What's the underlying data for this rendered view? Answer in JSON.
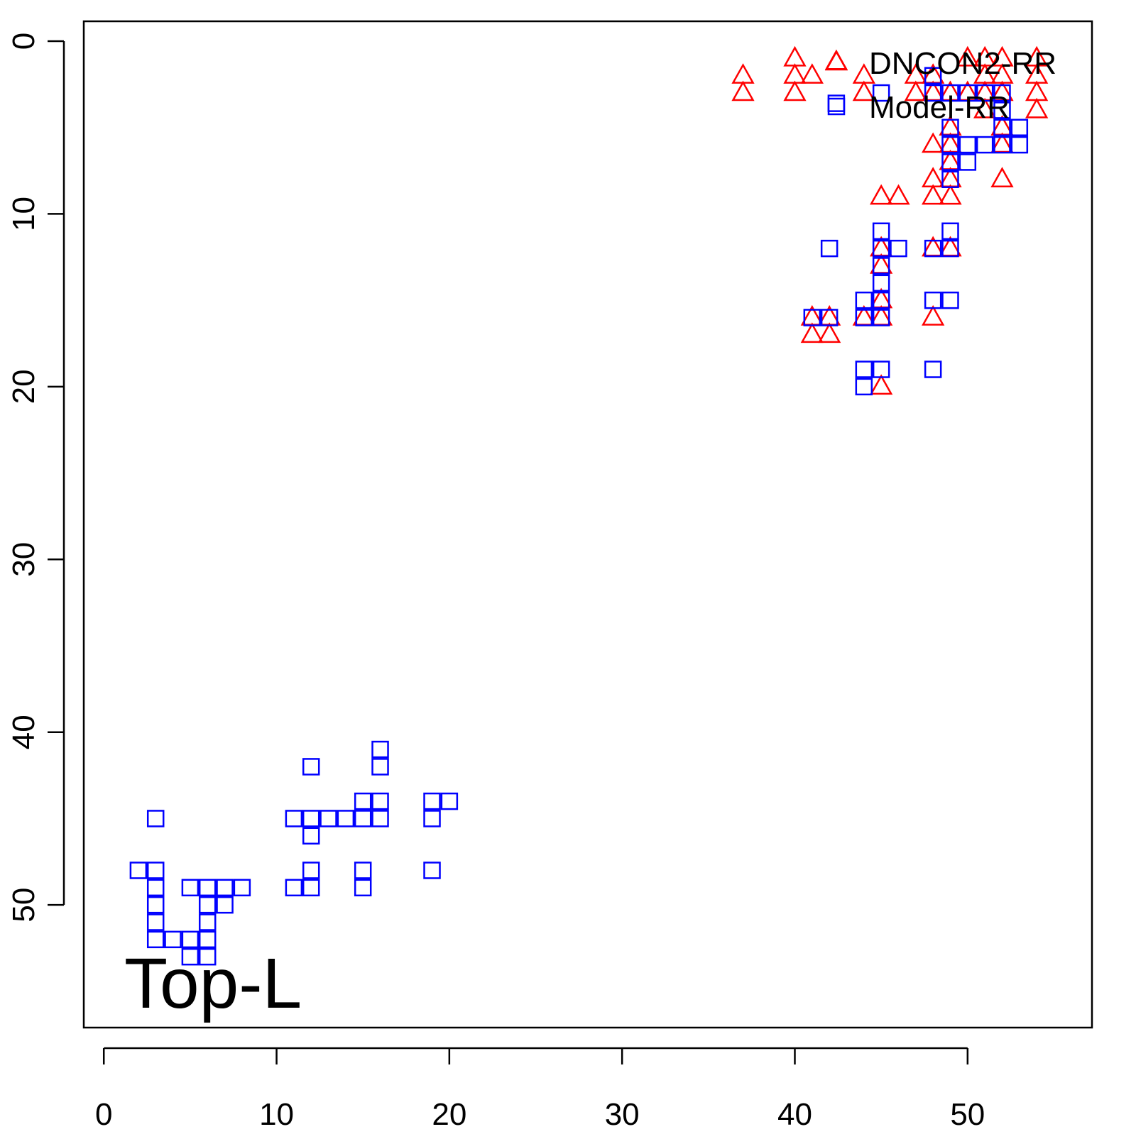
{
  "chart_data": {
    "type": "scatter",
    "annotation": "Top-L",
    "xlim": [
      -1.16,
      57.2
    ],
    "ylim": [
      57.1,
      -1.15
    ],
    "xticks": [
      0,
      10,
      20,
      30,
      40,
      50
    ],
    "yticks": [
      0,
      10,
      20,
      30,
      40,
      50
    ],
    "legend_position": "top-right",
    "series": [
      {
        "name": "DNCON2-RR",
        "color": "#ff0000",
        "marker": "triangle",
        "x": [
          37,
          37,
          40,
          40,
          40,
          41,
          42.4,
          44,
          44,
          47,
          47,
          48,
          48,
          49,
          50,
          50,
          51,
          51,
          51,
          52,
          52,
          52,
          54,
          54,
          54,
          54,
          51,
          52,
          52,
          52,
          48,
          48,
          48,
          49,
          49,
          49,
          49,
          49,
          45,
          46,
          48,
          49,
          45,
          45,
          45,
          45,
          44,
          41,
          42,
          41,
          42,
          48,
          45
        ],
        "values": [
          2,
          3,
          1,
          2,
          3,
          2,
          1.2,
          2,
          3,
          2,
          3,
          2,
          3,
          3,
          1,
          3,
          1,
          2,
          3,
          1,
          2,
          3,
          1,
          2,
          3,
          4,
          4,
          5,
          6,
          8,
          6,
          8,
          9,
          5,
          6,
          7,
          8,
          9,
          9,
          9,
          12,
          12,
          12,
          13,
          15,
          16,
          16,
          16,
          16,
          17,
          17,
          16,
          20
        ]
      },
      {
        "name": "Model-RR",
        "color": "#0000ff",
        "marker": "square",
        "x": [
          3,
          2,
          3,
          3,
          3,
          3,
          3,
          4,
          5,
          5,
          6,
          6,
          6,
          6,
          6,
          5,
          7,
          7,
          8,
          12,
          11,
          12,
          12,
          13,
          14,
          15,
          15,
          16,
          16,
          16,
          16,
          11,
          12,
          12,
          15,
          15,
          19,
          20,
          19,
          19,
          42.4,
          42,
          41,
          42,
          44,
          44,
          45,
          45,
          45,
          45,
          45,
          45,
          46,
          44,
          44,
          45,
          48,
          48,
          49,
          48,
          49,
          49,
          45,
          48,
          48,
          49,
          50,
          51,
          52,
          52,
          52,
          53,
          53,
          52,
          51,
          50,
          50,
          49,
          49,
          49,
          49
        ],
        "values": [
          45,
          48,
          48,
          49,
          50,
          51,
          52,
          52,
          52,
          53,
          53,
          52,
          51,
          50,
          49,
          49,
          49,
          50,
          49,
          42,
          45,
          45,
          46,
          45,
          45,
          45,
          44,
          44,
          45,
          41,
          42,
          49,
          49,
          48,
          48,
          49,
          44,
          44,
          45,
          48,
          3.6,
          12,
          16,
          16,
          15,
          16,
          15,
          16,
          14,
          13,
          12,
          11,
          12,
          19,
          20,
          19,
          19,
          15,
          15,
          12,
          12,
          11,
          3,
          2,
          3,
          3,
          3,
          3,
          3,
          4,
          5,
          5,
          6,
          6,
          6,
          6,
          7,
          6,
          7,
          8,
          5
        ]
      }
    ]
  }
}
